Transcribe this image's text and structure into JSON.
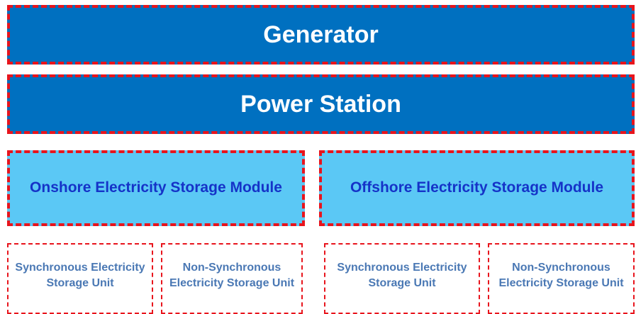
{
  "layers": [
    {
      "label": "Generator"
    },
    {
      "label": "Power Station"
    }
  ],
  "modules": [
    {
      "label": "Onshore Electricity Storage Module",
      "units": [
        {
          "label": "Synchronous Electricity Storage Unit"
        },
        {
          "label": "Non-Synchronous Electricity Storage Unit"
        }
      ]
    },
    {
      "label": "Offshore Electricity Storage Module",
      "units": [
        {
          "label": "Synchronous Electricity Storage Unit"
        },
        {
          "label": "Non-Synchronous Electricity Storage Unit"
        }
      ]
    }
  ]
}
